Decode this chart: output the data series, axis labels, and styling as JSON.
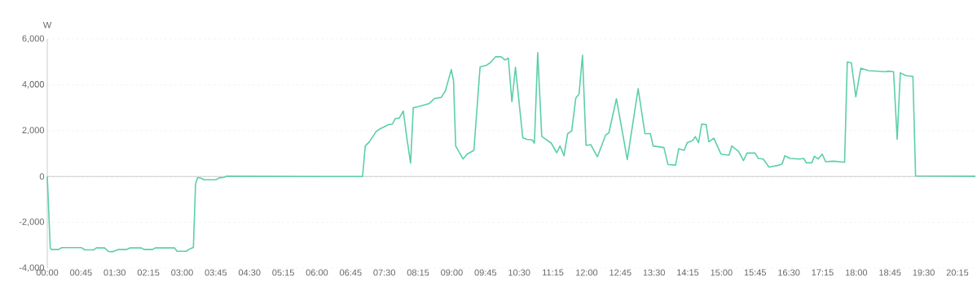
{
  "chart_data": {
    "type": "line",
    "ylabel": "W",
    "color": "#5ccfa8",
    "grid": "y",
    "x": [
      0,
      0.067,
      0.097,
      0.248,
      0.326,
      0.761,
      0.834,
      1.033,
      1.094,
      1.275,
      1.365,
      1.456,
      1.577,
      1.758,
      1.837,
      2.09,
      2.163,
      2.332,
      2.405,
      2.833,
      2.888,
      3.087,
      3.178,
      3.251,
      3.299,
      3.347,
      3.419,
      3.492,
      3.751,
      3.829,
      3.932,
      3.993,
      6.2,
      7.015,
      7.075,
      7.166,
      7.317,
      7.408,
      7.589,
      7.68,
      7.74,
      7.831,
      7.921,
      8.0,
      8.084,
      8.144,
      8.253,
      8.495,
      8.616,
      8.767,
      8.858,
      8.99,
      9.039,
      9.087,
      9.25,
      9.341,
      9.492,
      9.63,
      9.764,
      9.855,
      9.975,
      10.096,
      10.187,
      10.259,
      10.338,
      10.417,
      10.58,
      10.671,
      10.79,
      10.839,
      10.912,
      11.002,
      11.214,
      11.335,
      11.408,
      11.498,
      11.578,
      11.668,
      11.759,
      11.831,
      11.909,
      11.987,
      12.09,
      12.241,
      12.423,
      12.495,
      12.664,
      12.905,
      13.147,
      13.298,
      13.419,
      13.48,
      13.72,
      13.81,
      13.98,
      14.05,
      14.17,
      14.24,
      14.36,
      14.42,
      14.49,
      14.56,
      14.66,
      14.72,
      14.83,
      14.99,
      15.17,
      15.23,
      15.38,
      15.49,
      15.57,
      15.75,
      15.82,
      15.93,
      16.06,
      16.29,
      16.35,
      16.41,
      16.53,
      16.74,
      16.83,
      16.89,
      17.01,
      17.07,
      17.15,
      17.24,
      17.32,
      17.5,
      17.74,
      17.8,
      17.89,
      17.99,
      18.1,
      18.28,
      18.65,
      18.71,
      18.83,
      18.91,
      18.98,
      19.1,
      19.26,
      19.32,
      20.65
    ],
    "values": [
      0,
      -3131,
      -3190,
      -3190,
      -3107,
      -3107,
      -3202,
      -3202,
      -3119,
      -3119,
      -3274,
      -3286,
      -3190,
      -3190,
      -3119,
      -3119,
      -3190,
      -3190,
      -3119,
      -3119,
      -3262,
      -3262,
      -3155,
      -3095,
      -333,
      -48,
      -71,
      -143,
      -143,
      -60,
      -36,
      12,
      0,
      0,
      1333,
      1512,
      1964,
      2083,
      2262,
      2286,
      2524,
      2548,
      2857,
      1690,
      583,
      3000,
      3048,
      3179,
      3405,
      3452,
      3738,
      4667,
      4190,
      1333,
      762,
      976,
      1143,
      4786,
      4845,
      4964,
      5226,
      5226,
      5083,
      5167,
      3262,
      4762,
      1690,
      1619,
      1595,
      1452,
      5405,
      1750,
      1452,
      1036,
      1333,
      905,
      1869,
      1988,
      3417,
      3595,
      5286,
      1357,
      1393,
      857,
      1810,
      1905,
      3393,
      738,
      3833,
      1869,
      1869,
      1333,
      1262,
      524,
      500,
      1214,
      1143,
      1476,
      1571,
      1738,
      1476,
      2286,
      2262,
      1512,
      1667,
      976,
      929,
      1333,
      1095,
      690,
      1024,
      1024,
      786,
      762,
      405,
      500,
      548,
      905,
      786,
      762,
      786,
      595,
      595,
      881,
      762,
      976,
      643,
      667,
      619,
      5000,
      4964,
      3476,
      4726,
      4619,
      4571,
      4595,
      4571,
      1619,
      4524,
      4405,
      4369,
      24,
      12
    ],
    "xlim": [
      0,
      20.65
    ],
    "xticks": [
      {
        "value": 0,
        "label": "00:00"
      },
      {
        "value": 0.75,
        "label": "00:45"
      },
      {
        "value": 1.5,
        "label": "01:30"
      },
      {
        "value": 2.25,
        "label": "02:15"
      },
      {
        "value": 3,
        "label": "03:00"
      },
      {
        "value": 3.75,
        "label": "03:45"
      },
      {
        "value": 4.5,
        "label": "04:30"
      },
      {
        "value": 5.25,
        "label": "05:15"
      },
      {
        "value": 6,
        "label": "06:00"
      },
      {
        "value": 6.75,
        "label": "06:45"
      },
      {
        "value": 7.5,
        "label": "07:30"
      },
      {
        "value": 8.25,
        "label": "08:15"
      },
      {
        "value": 9,
        "label": "09:00"
      },
      {
        "value": 9.75,
        "label": "09:45"
      },
      {
        "value": 10.5,
        "label": "10:30"
      },
      {
        "value": 11.25,
        "label": "11:15"
      },
      {
        "value": 12,
        "label": "12:00"
      },
      {
        "value": 12.75,
        "label": "12:45"
      },
      {
        "value": 13.5,
        "label": "13:30"
      },
      {
        "value": 14.25,
        "label": "14:15"
      },
      {
        "value": 15,
        "label": "15:00"
      },
      {
        "value": 15.75,
        "label": "15:45"
      },
      {
        "value": 16.5,
        "label": "16:30"
      },
      {
        "value": 17.25,
        "label": "17:15"
      },
      {
        "value": 18,
        "label": "18:00"
      },
      {
        "value": 18.75,
        "label": "18:45"
      },
      {
        "value": 19.5,
        "label": "19:30"
      },
      {
        "value": 20.25,
        "label": "20:15"
      }
    ],
    "ylim": [
      -4000,
      6000
    ],
    "yticks": [
      {
        "value": -4000,
        "label": "-4,000"
      },
      {
        "value": -2000,
        "label": "-2,000"
      },
      {
        "value": 0,
        "label": "0"
      },
      {
        "value": 2000,
        "label": "2,000"
      },
      {
        "value": 4000,
        "label": "4,000"
      },
      {
        "value": 6000,
        "label": "6,000"
      }
    ]
  }
}
